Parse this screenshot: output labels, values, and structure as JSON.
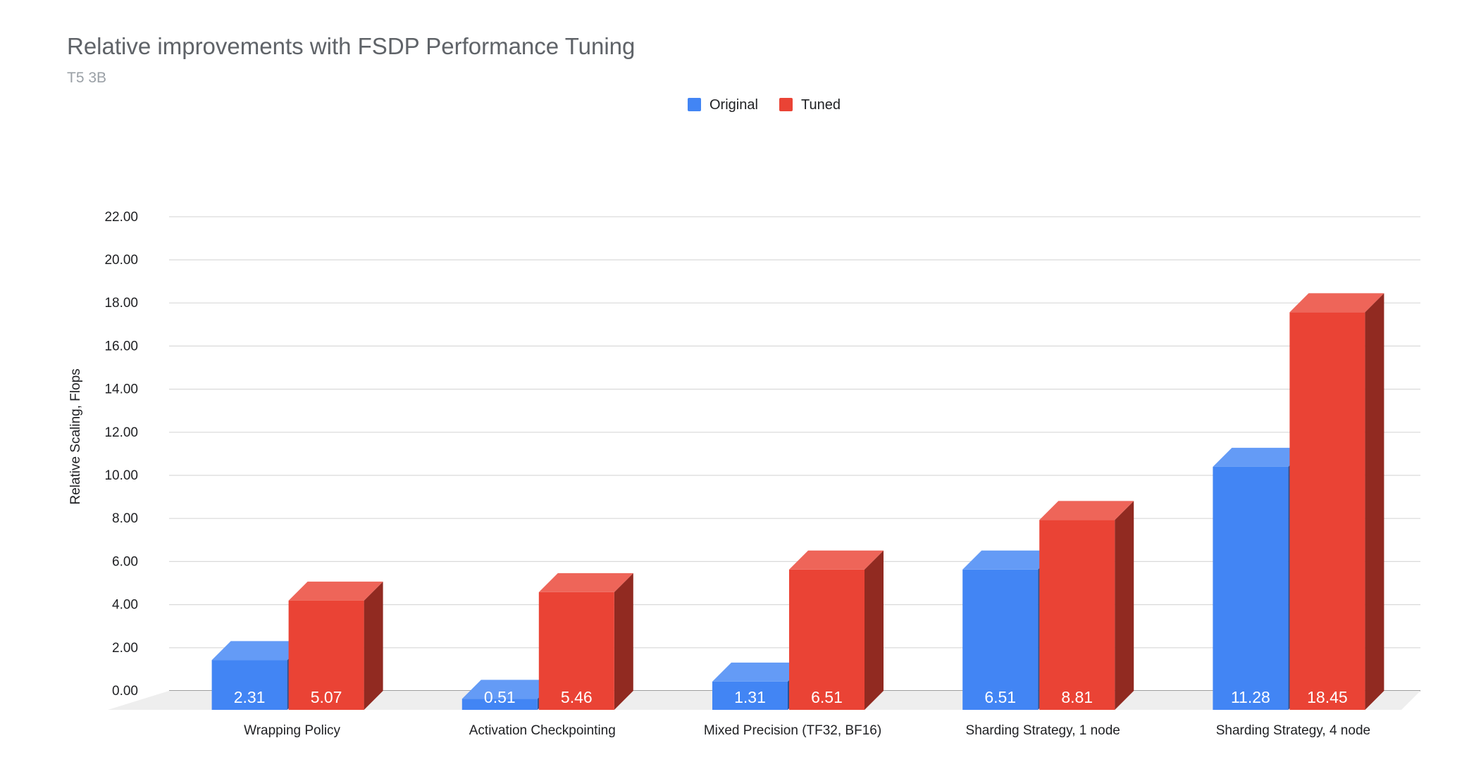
{
  "chart_data": {
    "type": "bar",
    "title": "Relative improvements with FSDP Performance Tuning",
    "subtitle": "T5 3B",
    "xlabel": "",
    "ylabel": "Relative Scaling, Flops",
    "ylim": [
      0,
      22
    ],
    "y_ticks": [
      "0.00",
      "2.00",
      "4.00",
      "6.00",
      "8.00",
      "10.00",
      "12.00",
      "14.00",
      "16.00",
      "18.00",
      "20.00",
      "22.00"
    ],
    "grid": true,
    "legend_position": "top-center",
    "three_d": true,
    "categories": [
      "Wrapping Policy",
      "Activation Checkpointing",
      "Mixed Precision (TF32, BF16)",
      "Sharding Strategy, 1 node",
      "Sharding Strategy, 4 node"
    ],
    "series": [
      {
        "name": "Original",
        "color": "#4285f4",
        "values": [
          2.31,
          0.51,
          1.31,
          6.51,
          11.28
        ],
        "labels": [
          "2.31",
          "0.51",
          "1.31",
          "6.51",
          "11.28"
        ]
      },
      {
        "name": "Tuned",
        "color": "#ea4335",
        "values": [
          5.07,
          5.46,
          6.51,
          8.81,
          18.45
        ],
        "labels": [
          "5.07",
          "5.46",
          "6.51",
          "8.81",
          "18.45"
        ]
      }
    ]
  }
}
